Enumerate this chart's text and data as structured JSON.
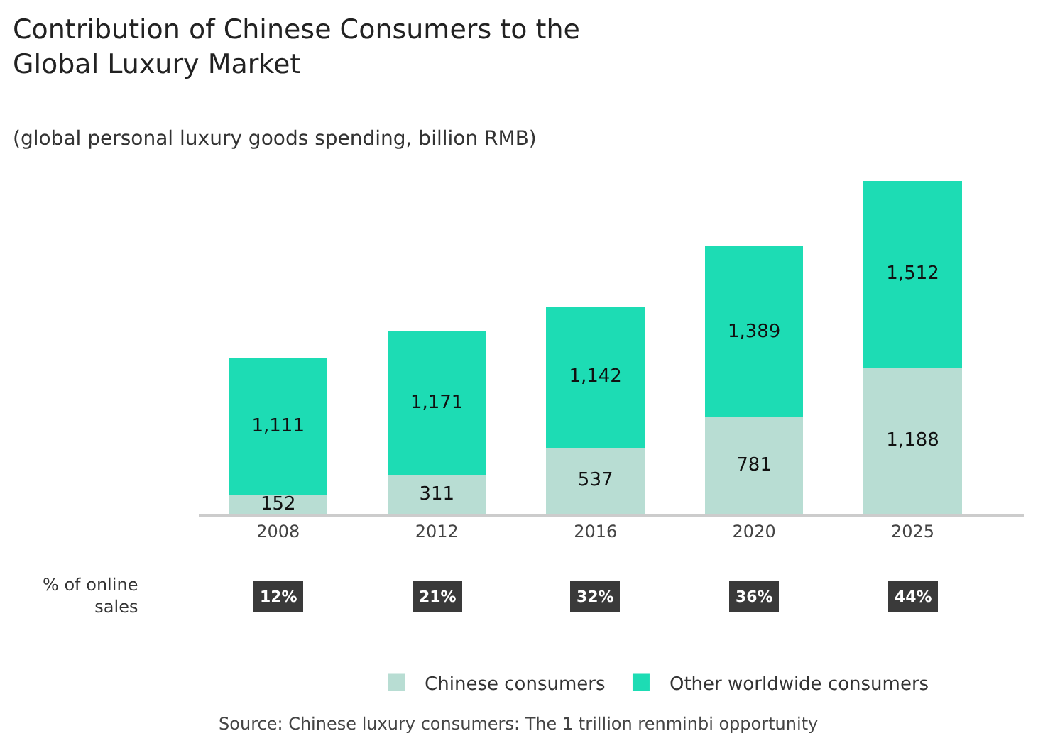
{
  "chart_data": {
    "type": "bar",
    "stacked": true,
    "title": "Contribution of Chinese Consumers to the\nGlobal Luxury Market",
    "subtitle": "(global personal luxury goods spending, billion RMB)",
    "categories": [
      "2008",
      "2012",
      "2016",
      "2020",
      "2025"
    ],
    "series": [
      {
        "name": "Chinese consumers",
        "color": "#b8ddd3",
        "values": [
          152,
          311,
          537,
          781,
          1188
        ],
        "value_labels": [
          "152",
          "311",
          "537",
          "781",
          "1,188"
        ]
      },
      {
        "name": "Other worldwide consumers",
        "color": "#1ddcb4",
        "values": [
          1111,
          1171,
          1142,
          1389,
          1512
        ],
        "value_labels": [
          "1,111",
          "1,171",
          "1,142",
          "1,389",
          "1,512"
        ]
      }
    ],
    "annotations": [
      "% of online sales",
      "12%",
      "21%",
      "32%",
      "36%",
      "44%",
      "Source: Chinese luxury consumers: The 1 trillion renminbi opportunity"
    ],
    "legend": "bottom"
  }
}
